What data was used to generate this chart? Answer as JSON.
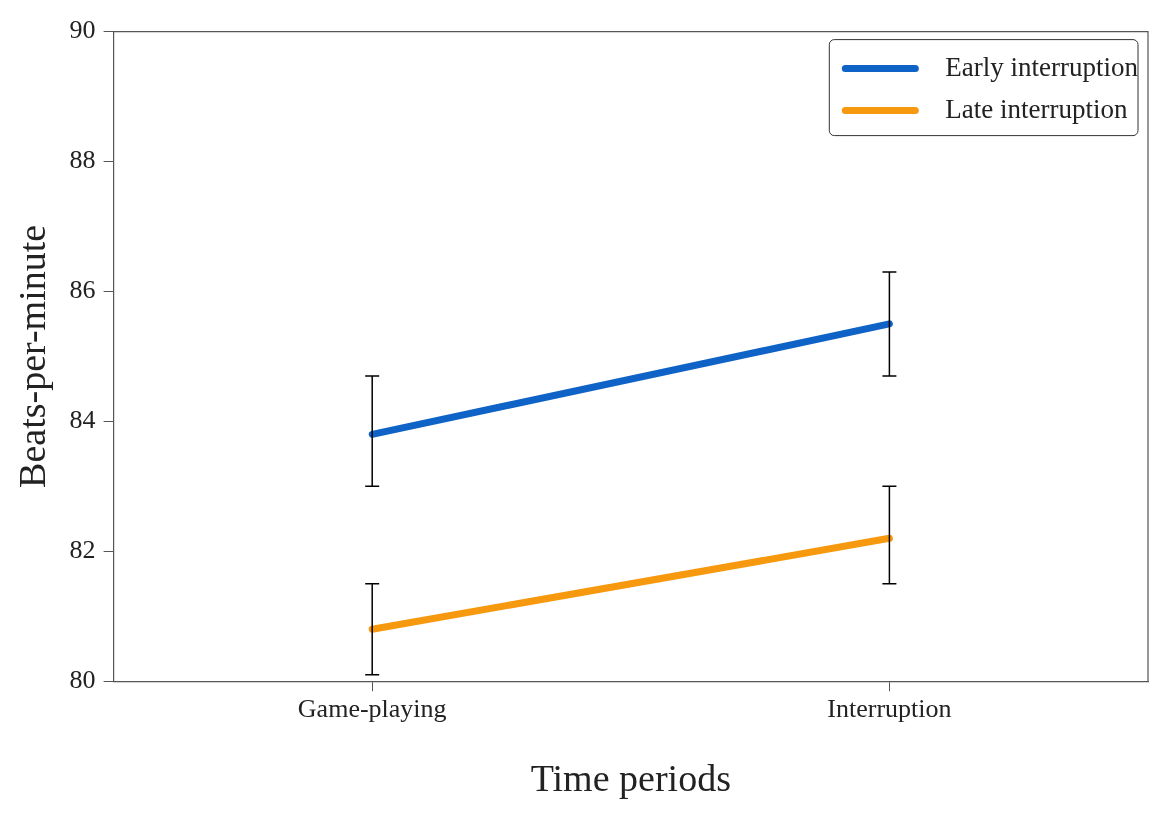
{
  "chart_data": {
    "type": "line",
    "xlabel": "Time periods",
    "ylabel": "Beats-per-minute",
    "categories": [
      "Game-playing",
      "Interruption"
    ],
    "series": [
      {
        "name": "Early interruption",
        "color": "#0f62c6",
        "values": [
          83.8,
          85.5
        ],
        "errors": [
          [
            83.0,
            84.7
          ],
          [
            84.7,
            86.3
          ]
        ]
      },
      {
        "name": "Late interruption",
        "color": "#f7990f",
        "values": [
          80.8,
          82.2
        ],
        "errors": [
          [
            80.1,
            81.5
          ],
          [
            81.5,
            83.0
          ]
        ]
      }
    ],
    "ylim": [
      80,
      90
    ],
    "yticks": [
      80,
      82,
      84,
      86,
      88,
      90
    ],
    "grid": false,
    "legend": "top right",
    "marker": "none",
    "line_style": "solid"
  }
}
